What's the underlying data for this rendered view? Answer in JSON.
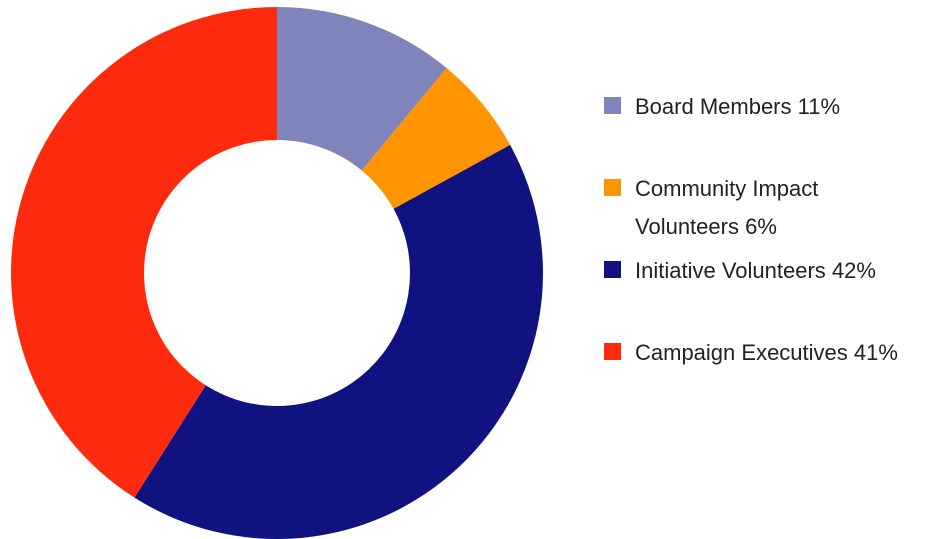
{
  "chart_data": {
    "type": "donut",
    "categories": [
      "Board Members",
      "Community Impact Volunteers",
      "Initiative Volunteers",
      "Campaign Executives"
    ],
    "values": [
      11,
      6,
      42,
      41
    ],
    "value_labels": [
      "11%",
      "6%",
      "42%",
      "41%"
    ],
    "colors": [
      "#7f84ba",
      "#fe9500",
      "#10137f",
      "#fe2a0e"
    ],
    "legend": "right"
  }
}
